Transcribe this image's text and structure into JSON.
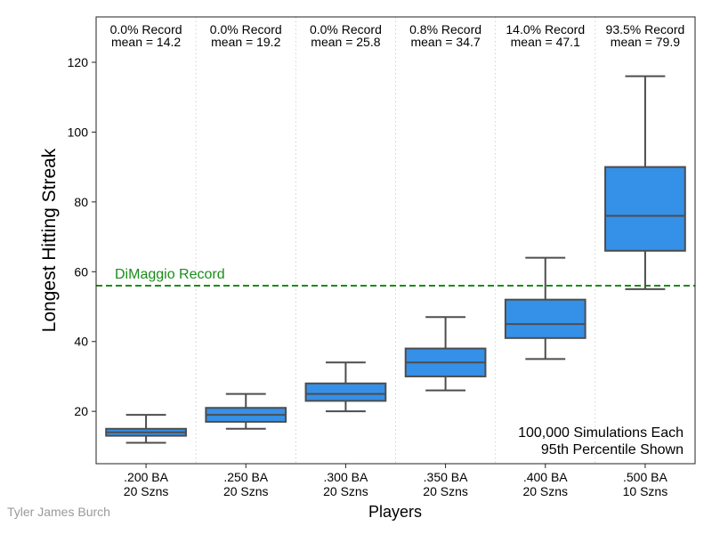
{
  "chart_data": {
    "type": "box",
    "title": "",
    "xlabel": "Players",
    "ylabel": "Longest Hitting Streak",
    "ylim": [
      5,
      133
    ],
    "yticks": [
      20,
      40,
      60,
      80,
      100,
      120
    ],
    "box_color": "#3590e8",
    "line_color": "#4d4d4d",
    "reference_color": "#1a8c1a",
    "reference_line": {
      "value": 56,
      "label": "DiMaggio Record"
    },
    "categories": [
      {
        "line1": ".200 BA",
        "line2": "20 Szns",
        "record": "0.0% Record",
        "mean": "mean = 14.2",
        "whisker_low": 11,
        "q1": 13,
        "median": 14,
        "q3": 15,
        "whisker_high": 19
      },
      {
        "line1": ".250 BA",
        "line2": "20 Szns",
        "record": "0.0% Record",
        "mean": "mean = 19.2",
        "whisker_low": 15,
        "q1": 17,
        "median": 19,
        "q3": 21,
        "whisker_high": 25
      },
      {
        "line1": ".300 BA",
        "line2": "20 Szns",
        "record": "0.0% Record",
        "mean": "mean = 25.8",
        "whisker_low": 20,
        "q1": 23,
        "median": 25,
        "q3": 28,
        "whisker_high": 34
      },
      {
        "line1": ".350 BA",
        "line2": "20 Szns",
        "record": "0.8% Record",
        "mean": "mean = 34.7",
        "whisker_low": 26,
        "q1": 30,
        "median": 34,
        "q3": 38,
        "whisker_high": 47
      },
      {
        "line1": ".400 BA",
        "line2": "20 Szns",
        "record": "14.0% Record",
        "mean": "mean = 47.1",
        "whisker_low": 35,
        "q1": 41,
        "median": 45,
        "q3": 52,
        "whisker_high": 64
      },
      {
        "line1": ".500 BA",
        "line2": "10 Szns",
        "record": "93.5% Record",
        "mean": "mean = 79.9",
        "whisker_low": 55,
        "q1": 66,
        "median": 76,
        "q3": 90,
        "whisker_high": 116
      }
    ],
    "annotation": [
      "100,000 Simulations Each",
      "95th Percentile Shown"
    ],
    "grid": "vertical dotted separators between categories"
  },
  "credit": "Tyler James Burch"
}
